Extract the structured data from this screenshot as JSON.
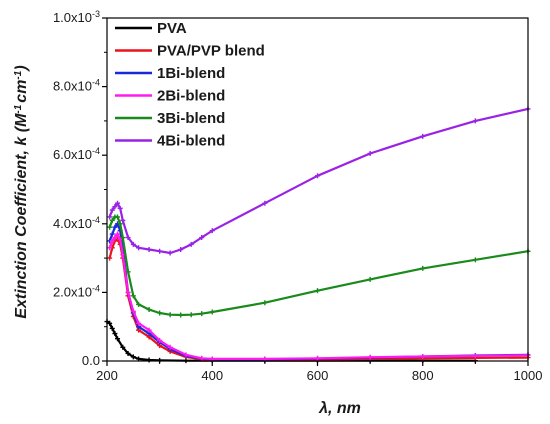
{
  "chart_data": {
    "type": "line",
    "xlabel": "λ, nm",
    "ylabel_main": "Extinction Coefficient, k (M",
    "ylabel_sup1": "-1",
    "ylabel_mid": "cm",
    "ylabel_sup2": "-1",
    "ylabel_end": ")",
    "xlim": [
      200,
      1000
    ],
    "ylim": [
      0,
      0.001
    ],
    "x_ticks": [
      {
        "value": 200,
        "label": "200"
      },
      {
        "value": 400,
        "label": "400"
      },
      {
        "value": 600,
        "label": "600"
      },
      {
        "value": 800,
        "label": "800"
      },
      {
        "value": 1000,
        "label": "1000"
      }
    ],
    "y_ticks": [
      {
        "value": 0,
        "label": "0.0"
      },
      {
        "value": 0.0002,
        "label": "2.0x10",
        "exp": "-4"
      },
      {
        "value": 0.0004,
        "label": "4.0x10",
        "exp": "-4"
      },
      {
        "value": 0.0006,
        "label": "6.0x10",
        "exp": "-4"
      },
      {
        "value": 0.0008,
        "label": "8.0x10",
        "exp": "-4"
      },
      {
        "value": 0.001,
        "label": "1.0x10",
        "exp": "-3"
      }
    ],
    "grid": false,
    "legend_position": "top-left",
    "series": [
      {
        "name": "PVA",
        "color": "#000000",
        "x": [
          200,
          205,
          210,
          215,
          220,
          230,
          240,
          250,
          260,
          280,
          300,
          350,
          400,
          500,
          600,
          700,
          800,
          900
        ],
        "y": [
          0.000115,
          0.00011,
          9.5e-05,
          8e-05,
          6.5e-05,
          4e-05,
          2.2e-05,
          1.2e-05,
          6e-06,
          3e-06,
          2e-06,
          1e-06,
          1e-06,
          1e-06,
          1e-06,
          1e-06,
          1e-06,
          1e-06
        ]
      },
      {
        "name": "PVA/PVP blend",
        "color": "#e8141c",
        "x": [
          205,
          210,
          215,
          220,
          225,
          230,
          240,
          250,
          260,
          280,
          300,
          320,
          350,
          380,
          400,
          500,
          600,
          700,
          800,
          900,
          1000
        ],
        "y": [
          0.0003,
          0.00033,
          0.00035,
          0.000355,
          0.00034,
          0.0003,
          0.00019,
          0.00013,
          9e-05,
          7e-05,
          4.5e-05,
          2.8e-05,
          1.2e-05,
          5e-06,
          3e-06,
          3e-06,
          4e-06,
          6e-06,
          8e-06,
          9e-06,
          1e-05
        ]
      },
      {
        "name": "1Bi-blend",
        "color": "#1a2ad8",
        "x": [
          205,
          210,
          215,
          220,
          225,
          230,
          240,
          250,
          260,
          280,
          300,
          320,
          350,
          380,
          400,
          500,
          600,
          700,
          800,
          900,
          1000
        ],
        "y": [
          0.00035,
          0.00037,
          0.00039,
          0.0004,
          0.00038,
          0.00033,
          0.0002,
          0.00014,
          0.0001,
          8e-05,
          5.5e-05,
          3.5e-05,
          1.5e-05,
          7e-06,
          5e-06,
          5e-06,
          7e-06,
          1e-05,
          1.3e-05,
          1.6e-05,
          1.8e-05
        ]
      },
      {
        "name": "2Bi-blend",
        "color": "#ff1af0",
        "x": [
          205,
          210,
          215,
          220,
          225,
          230,
          240,
          250,
          260,
          280,
          300,
          320,
          350,
          380,
          400,
          500,
          600,
          700,
          800,
          900,
          1000
        ],
        "y": [
          0.00033,
          0.00035,
          0.00036,
          0.00037,
          0.000355,
          0.00031,
          0.0002,
          0.000145,
          0.00011,
          9e-05,
          6e-05,
          4e-05,
          1.8e-05,
          8e-06,
          6e-06,
          6e-06,
          8e-06,
          1.1e-05,
          1.3e-05,
          1.5e-05,
          1.7e-05
        ]
      },
      {
        "name": "3Bi-blend",
        "color": "#1a8a1a",
        "x": [
          205,
          210,
          215,
          220,
          225,
          230,
          240,
          250,
          260,
          280,
          300,
          320,
          340,
          360,
          380,
          400,
          500,
          600,
          700,
          800,
          900,
          1000
        ],
        "y": [
          0.00039,
          0.00041,
          0.00042,
          0.00042,
          0.0004,
          0.00036,
          0.00026,
          0.00019,
          0.000165,
          0.00015,
          0.00014,
          0.000135,
          0.000134,
          0.000135,
          0.000138,
          0.000143,
          0.00017,
          0.000205,
          0.000238,
          0.00027,
          0.000295,
          0.00032
        ]
      },
      {
        "name": "4Bi-blend",
        "color": "#9a22e6",
        "x": [
          205,
          210,
          215,
          220,
          225,
          230,
          240,
          250,
          260,
          280,
          300,
          320,
          340,
          360,
          380,
          400,
          500,
          600,
          700,
          800,
          900,
          1000
        ],
        "y": [
          0.00042,
          0.00044,
          0.00045,
          0.00046,
          0.000445,
          0.00041,
          0.00036,
          0.00034,
          0.00033,
          0.000325,
          0.00032,
          0.000315,
          0.000325,
          0.00034,
          0.00036,
          0.00038,
          0.00046,
          0.00054,
          0.000605,
          0.000655,
          0.0007,
          0.000735
        ]
      }
    ]
  }
}
